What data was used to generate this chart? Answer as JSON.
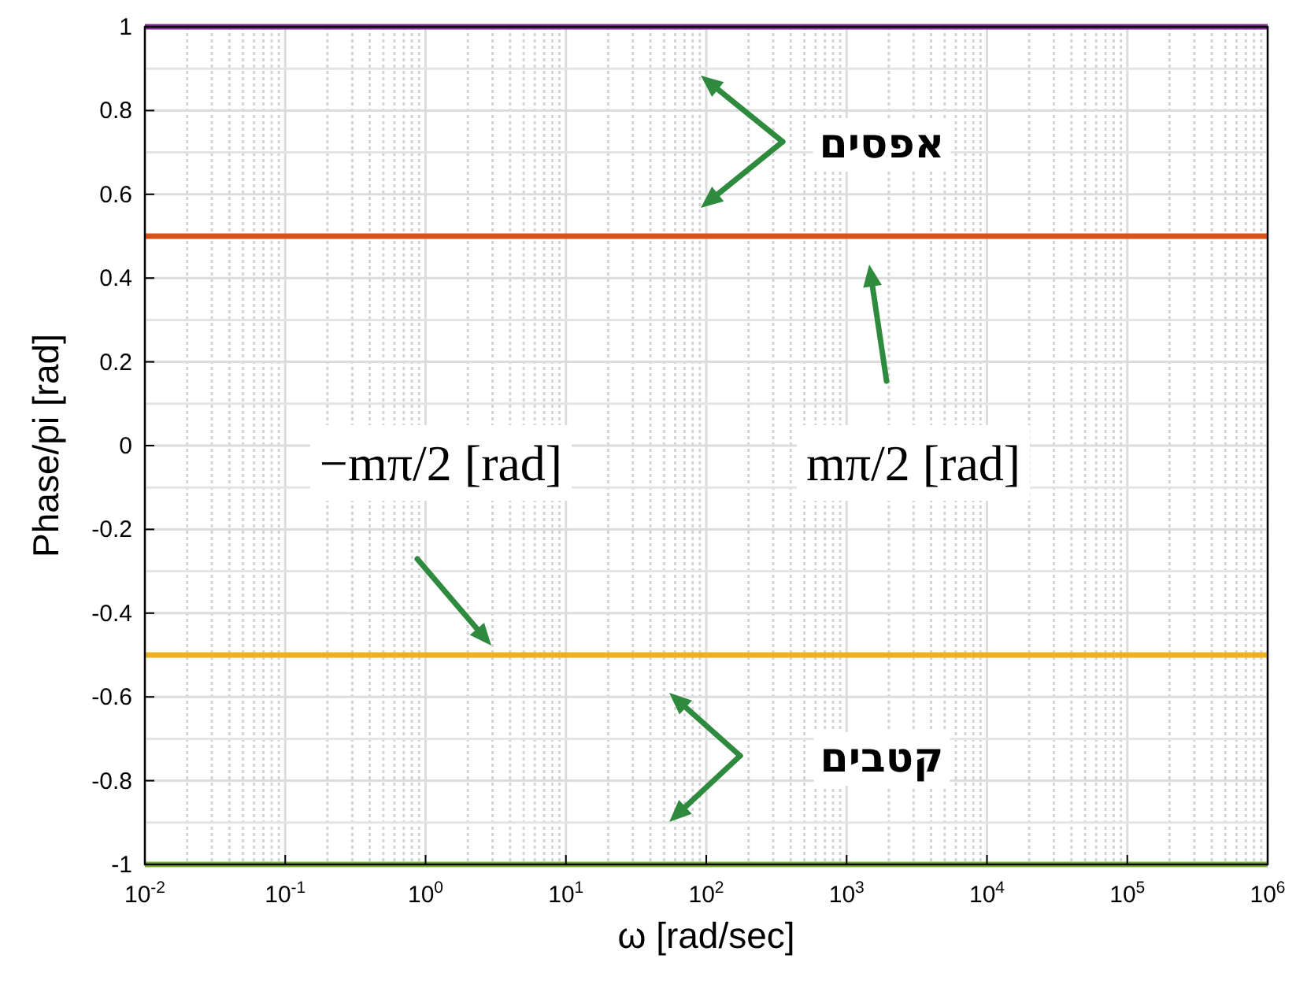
{
  "chart_data": {
    "type": "line",
    "xlabel": "ω [rad/sec]",
    "ylabel": "Phase/pi [rad]",
    "log": "x",
    "grid": true,
    "x": [
      0.01,
      1000000
    ],
    "series": [
      {
        "color": "#7e2f8e",
        "values": [
          1,
          1
        ]
      },
      {
        "color": "#d95319",
        "values": [
          0.5,
          0.5
        ]
      },
      {
        "color": "#edb120",
        "values": [
          -0.5,
          -0.5
        ]
      },
      {
        "color": "#77ac30",
        "values": [
          -1,
          -1
        ]
      }
    ],
    "xlim": [
      0.01,
      1000000
    ],
    "ylim": [
      -1,
      1
    ],
    "xticks": [
      {
        "value": 0.01,
        "label": "10$^{-2}$"
      },
      {
        "value": 0.1,
        "label": "10$^{-1}$"
      },
      {
        "value": 1,
        "label": "10$^{0}$"
      },
      {
        "value": 10,
        "label": "10$^{1}$"
      },
      {
        "value": 100,
        "label": "10$^{2}$"
      },
      {
        "value": 1000,
        "label": "10$^{3}$"
      },
      {
        "value": 10000,
        "label": "10$^{4}$"
      },
      {
        "value": 100000,
        "label": "10$^{5}$"
      },
      {
        "value": 1000000,
        "label": "10$^{6}$"
      }
    ],
    "yticks": [
      -1,
      -0.8,
      -0.6,
      -0.4,
      -0.2,
      0,
      0.2,
      0.4,
      0.6,
      0.8,
      1
    ],
    "annotations": [
      "אפסים",
      "mπ/2 [rad]",
      "−mπ/2 [rad]",
      "קטבים"
    ]
  }
}
